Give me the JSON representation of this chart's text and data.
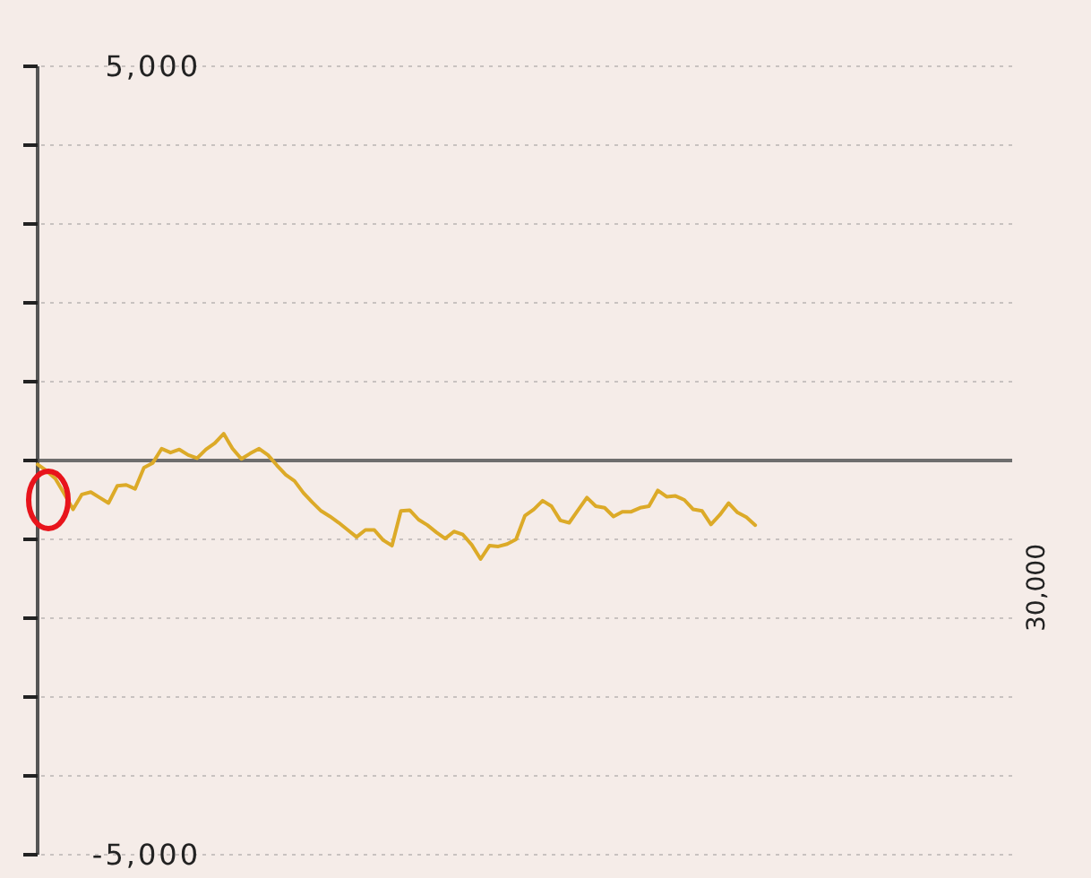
{
  "chart_data": {
    "type": "line",
    "categories": [
      null,
      null,
      null,
      null,
      null,
      null,
      null,
      null,
      null,
      null,
      null,
      null,
      null,
      null,
      null,
      null,
      null,
      null,
      null,
      null,
      null,
      null,
      null,
      null,
      null,
      null,
      null,
      null,
      null,
      null,
      null,
      null,
      null,
      null,
      null,
      null,
      null,
      null,
      null,
      null,
      null,
      null,
      null,
      null,
      null,
      null,
      null,
      null,
      null,
      null,
      null,
      null,
      null,
      null,
      null,
      null,
      null,
      null,
      null,
      null,
      null,
      null,
      null,
      null,
      null,
      null,
      null,
      null,
      null,
      null,
      null,
      null,
      null,
      null,
      null,
      null,
      null,
      null,
      null,
      null,
      null,
      null,
      null,
      null,
      null,
      null,
      null,
      null,
      null,
      null,
      null,
      null,
      null,
      null,
      null,
      null,
      null,
      null,
      null,
      null,
      null,
      null,
      null,
      null,
      null,
      null,
      null,
      null,
      null,
      null,
      null
    ],
    "values": [
      -50,
      -130,
      -230,
      -420,
      -620,
      -430,
      -400,
      -470,
      -540,
      -320,
      -310,
      -360,
      -90,
      -30,
      150,
      100,
      140,
      70,
      30,
      140,
      220,
      340,
      150,
      20,
      90,
      150,
      70,
      -60,
      -180,
      -260,
      -410,
      -530,
      -640,
      -710,
      -790,
      -880,
      -970,
      -880,
      -880,
      -1010,
      -1080,
      -640,
      -630,
      -750,
      -820,
      -910,
      -990,
      -900,
      -940,
      -1070,
      -1250,
      -1080,
      -1090,
      -1060,
      -1000,
      -700,
      -620,
      -510,
      -580,
      -760,
      -790,
      -630,
      -470,
      -580,
      -600,
      -710,
      -650,
      -650,
      -600,
      -580,
      -380,
      -460,
      -450,
      -500,
      -620,
      -640,
      -810,
      -690,
      -540,
      -660,
      -720,
      -820,
      null,
      null,
      null,
      null,
      null,
      null,
      null,
      null,
      null,
      null,
      null,
      null,
      null,
      null,
      null,
      null,
      null,
      null,
      null,
      null,
      null,
      null,
      null,
      null,
      null,
      null,
      null,
      null,
      null
    ],
    "color": "#dcaa28",
    "ylim": [
      -5000,
      5000
    ],
    "yticks": [
      {
        "value": 5000,
        "label": "5,000"
      },
      {
        "value": 4000,
        "label": null
      },
      {
        "value": 3000,
        "label": null
      },
      {
        "value": 2000,
        "label": null
      },
      {
        "value": 1000,
        "label": null
      },
      {
        "value": 0,
        "label": null
      },
      {
        "value": -1000,
        "label": null
      },
      {
        "value": -2000,
        "label": null
      },
      {
        "value": -3000,
        "label": null
      },
      {
        "value": -4000,
        "label": null
      },
      {
        "value": -5000,
        "label": "-5,000"
      }
    ],
    "grid": "y",
    "ref_lines": [
      {
        "axis": "y",
        "value": 0,
        "color": "#6e6e6e"
      }
    ],
    "annotations": [
      "30,000"
    ],
    "tick_labels": "y"
  }
}
